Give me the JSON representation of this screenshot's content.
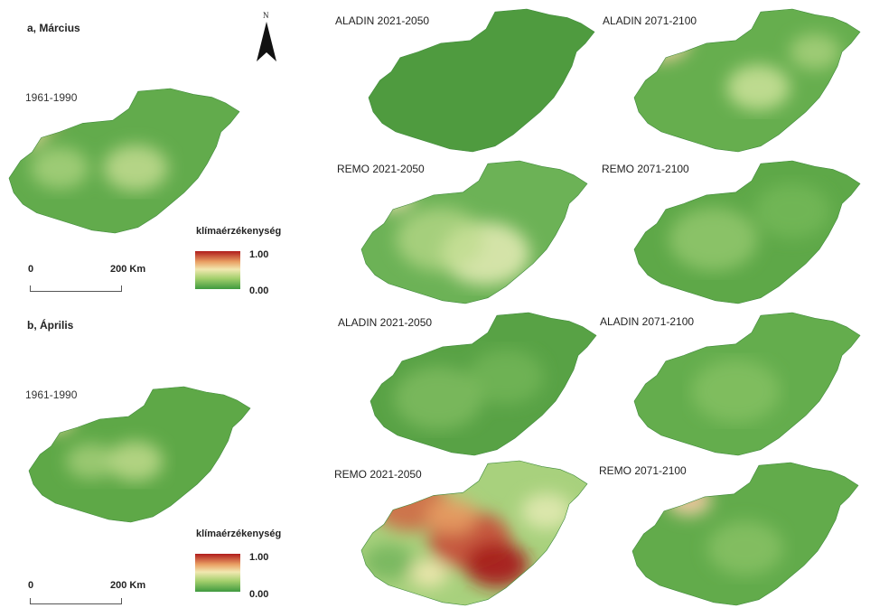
{
  "sections": {
    "march": "a, Március",
    "april": "b, Április"
  },
  "baseline_period": "1961-1990",
  "north_label": "N",
  "legend": {
    "title": "klímaérzékenység",
    "max": "1.00",
    "min": "0.00"
  },
  "scale": {
    "zero": "0",
    "distance": "200 Km"
  },
  "panels": {
    "march": [
      {
        "title": "ALADIN 2021-2050"
      },
      {
        "title": "ALADIN 2071-2100"
      },
      {
        "title": "REMO 2021-2050"
      },
      {
        "title": "REMO 2071-2100"
      }
    ],
    "april": [
      {
        "title": "ALADIN 2021-2050"
      },
      {
        "title": "ALADIN 2071-2100"
      },
      {
        "title": "REMO 2021-2050"
      },
      {
        "title": "REMO 2071-2100"
      }
    ]
  },
  "colors": {
    "high": "#b01c1c",
    "mid": "#f1e8b0",
    "low": "#3f9a3f"
  }
}
